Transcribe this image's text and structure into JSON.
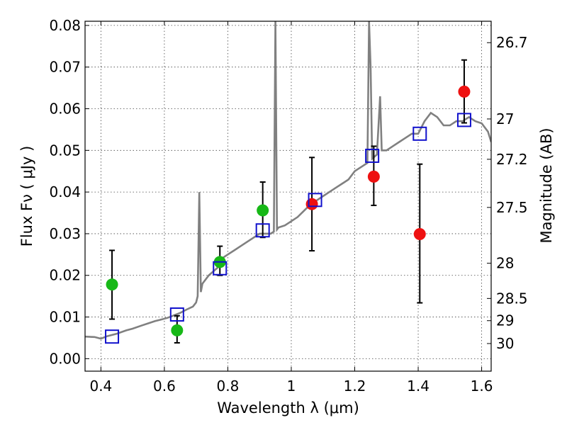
{
  "chart_data": {
    "type": "scatter",
    "title": "",
    "xlabel": "Wavelength  λ (μm)",
    "ylabel": "Flux  Fν  ( μJy )",
    "ylabel_right": "Magnitude (AB)",
    "xlim": [
      0.35,
      1.63
    ],
    "ylim": [
      -0.003,
      0.081
    ],
    "grid": true,
    "colors": {
      "green": "#17b817",
      "red": "#ee1111",
      "model_box": "#1111cc",
      "spectrum": "#808080",
      "errorbar": "#000000"
    },
    "x_ticks": [
      {
        "v": 0.4,
        "label": "0.4"
      },
      {
        "v": 0.6,
        "label": "0.6"
      },
      {
        "v": 0.8,
        "label": "0.8"
      },
      {
        "v": 1.0,
        "label": "1"
      },
      {
        "v": 1.2,
        "label": "1.2"
      },
      {
        "v": 1.4,
        "label": "1.4"
      },
      {
        "v": 1.6,
        "label": "1.6"
      }
    ],
    "y_ticks": [
      {
        "v": 0.0,
        "label": "0.00"
      },
      {
        "v": 0.01,
        "label": "0.01"
      },
      {
        "v": 0.02,
        "label": "0.02"
      },
      {
        "v": 0.03,
        "label": "0.03"
      },
      {
        "v": 0.04,
        "label": "0.04"
      },
      {
        "v": 0.05,
        "label": "0.05"
      },
      {
        "v": 0.06,
        "label": "0.06"
      },
      {
        "v": 0.07,
        "label": "0.07"
      },
      {
        "v": 0.08,
        "label": "0.08"
      }
    ],
    "right_ticks": [
      {
        "mag": 26.7,
        "label": "26.7"
      },
      {
        "mag": 27.0,
        "label": "27"
      },
      {
        "mag": 27.2,
        "label": "27.2"
      },
      {
        "mag": 27.5,
        "label": "27.5"
      },
      {
        "mag": 28.0,
        "label": "28"
      },
      {
        "mag": 28.5,
        "label": "28.5"
      },
      {
        "mag": 29.0,
        "label": "29"
      },
      {
        "mag": 30.0,
        "label": "30"
      }
    ],
    "series": [
      {
        "marker": "circle",
        "color": "green",
        "points": [
          {
            "x": 0.435,
            "y": 0.0178,
            "err_lo": 0.0083,
            "err_hi": 0.0082
          },
          {
            "x": 0.64,
            "y": 0.0068,
            "err_lo": 0.003,
            "err_hi": 0.0035
          },
          {
            "x": 0.775,
            "y": 0.0232,
            "err_lo": 0.0032,
            "err_hi": 0.0038
          },
          {
            "x": 0.91,
            "y": 0.0356,
            "err_lo": 0.0065,
            "err_hi": 0.0068
          }
        ]
      },
      {
        "marker": "circle",
        "color": "red",
        "points": [
          {
            "x": 1.065,
            "y": 0.0371,
            "err_lo": 0.0112,
            "err_hi": 0.0112
          },
          {
            "x": 1.26,
            "y": 0.0437,
            "err_lo": 0.0069,
            "err_hi": 0.0073
          },
          {
            "x": 1.405,
            "y": 0.0299,
            "err_lo": 0.0165,
            "err_hi": 0.0168
          },
          {
            "x": 1.545,
            "y": 0.0641,
            "err_lo": 0.0075,
            "err_hi": 0.0076
          }
        ]
      },
      {
        "marker": "square",
        "color": "model_box",
        "points": [
          {
            "x": 0.435,
            "y": 0.0053
          },
          {
            "x": 0.64,
            "y": 0.0106
          },
          {
            "x": 0.775,
            "y": 0.0217
          },
          {
            "x": 0.91,
            "y": 0.0308
          },
          {
            "x": 1.075,
            "y": 0.0381
          },
          {
            "x": 1.255,
            "y": 0.0487
          },
          {
            "x": 1.405,
            "y": 0.054
          },
          {
            "x": 1.545,
            "y": 0.0573
          }
        ]
      }
    ],
    "spectrum": [
      [
        0.35,
        0.0053
      ],
      [
        0.38,
        0.0052
      ],
      [
        0.4,
        0.0048
      ],
      [
        0.42,
        0.0054
      ],
      [
        0.45,
        0.006
      ],
      [
        0.48,
        0.0068
      ],
      [
        0.5,
        0.0072
      ],
      [
        0.53,
        0.008
      ],
      [
        0.55,
        0.0085
      ],
      [
        0.57,
        0.009
      ],
      [
        0.59,
        0.0094
      ],
      [
        0.61,
        0.0098
      ],
      [
        0.63,
        0.0104
      ],
      [
        0.65,
        0.011
      ],
      [
        0.67,
        0.0118
      ],
      [
        0.69,
        0.0125
      ],
      [
        0.7,
        0.0135
      ],
      [
        0.705,
        0.015
      ],
      [
        0.71,
        0.04
      ],
      [
        0.715,
        0.016
      ],
      [
        0.72,
        0.018
      ],
      [
        0.74,
        0.02
      ],
      [
        0.755,
        0.021
      ],
      [
        0.77,
        0.022
      ],
      [
        0.78,
        0.024
      ],
      [
        0.8,
        0.025
      ],
      [
        0.82,
        0.026
      ],
      [
        0.84,
        0.027
      ],
      [
        0.86,
        0.028
      ],
      [
        0.88,
        0.029
      ],
      [
        0.9,
        0.03
      ],
      [
        0.92,
        0.03
      ],
      [
        0.935,
        0.03
      ],
      [
        0.945,
        0.0305
      ],
      [
        0.95,
        0.081
      ],
      [
        0.955,
        0.031
      ],
      [
        0.96,
        0.0315
      ],
      [
        0.98,
        0.032
      ],
      [
        1.0,
        0.033
      ],
      [
        1.02,
        0.034
      ],
      [
        1.04,
        0.0355
      ],
      [
        1.06,
        0.037
      ],
      [
        1.08,
        0.038
      ],
      [
        1.1,
        0.039
      ],
      [
        1.12,
        0.04
      ],
      [
        1.14,
        0.041
      ],
      [
        1.16,
        0.042
      ],
      [
        1.18,
        0.043
      ],
      [
        1.2,
        0.045
      ],
      [
        1.22,
        0.046
      ],
      [
        1.24,
        0.047
      ],
      [
        1.245,
        0.081
      ],
      [
        1.25,
        0.07
      ],
      [
        1.255,
        0.048
      ],
      [
        1.27,
        0.049
      ],
      [
        1.28,
        0.063
      ],
      [
        1.285,
        0.05
      ],
      [
        1.3,
        0.05
      ],
      [
        1.32,
        0.051
      ],
      [
        1.34,
        0.052
      ],
      [
        1.36,
        0.053
      ],
      [
        1.38,
        0.054
      ],
      [
        1.4,
        0.054
      ],
      [
        1.42,
        0.057
      ],
      [
        1.44,
        0.059
      ],
      [
        1.46,
        0.058
      ],
      [
        1.48,
        0.056
      ],
      [
        1.5,
        0.056
      ],
      [
        1.52,
        0.057
      ],
      [
        1.54,
        0.057
      ],
      [
        1.56,
        0.058
      ],
      [
        1.58,
        0.057
      ],
      [
        1.6,
        0.0565
      ],
      [
        1.62,
        0.0545
      ],
      [
        1.63,
        0.052
      ]
    ]
  }
}
